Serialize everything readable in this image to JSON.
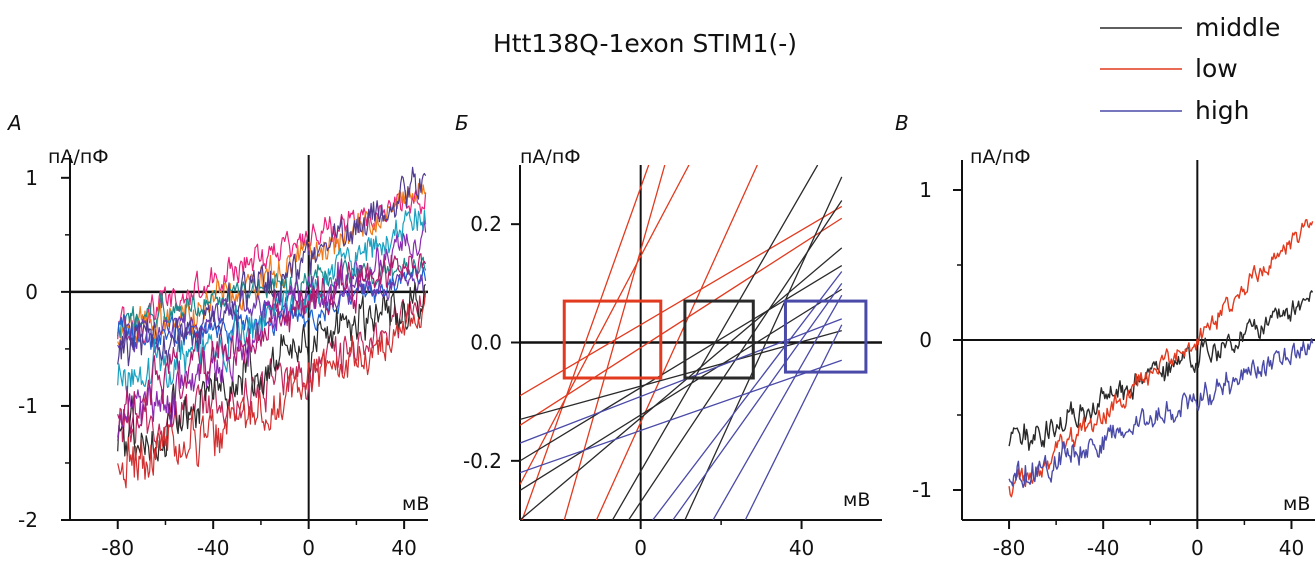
{
  "title": "Htt138Q-1exon STIM1(-)",
  "colors": {
    "middle": "#2a2a2a",
    "low": "#e23a1e",
    "high": "#4a4aa8",
    "panelA": [
      "#e8227a",
      "#f07a1a",
      "#1a8a8a",
      "#1c5fd0",
      "#6a3ab0",
      "#c0285a",
      "#2a2a2a",
      "#d23030",
      "#8a2ab0",
      "#1aa0c0",
      "#b01a6a",
      "#503a90"
    ]
  },
  "legend": {
    "items": [
      {
        "label": "middle",
        "series": "middle"
      },
      {
        "label": "low",
        "series": "low"
      },
      {
        "label": "high",
        "series": "high"
      }
    ],
    "position": "top-right"
  },
  "chart_data": [
    {
      "panel": "А",
      "type": "line",
      "ylabel": "пА/пФ",
      "xlabel": "мВ",
      "xlim": [
        -100,
        50
      ],
      "ylim": [
        -2,
        1.2
      ],
      "xticks": [
        -80,
        -40,
        0,
        40
      ],
      "yticks": [
        1,
        0,
        -1,
        -2
      ],
      "x_range": [
        -80,
        49
      ],
      "description_traces": "12 overlapping noisy I-V traces",
      "traces": [
        {
          "y_at_-80": -0.35,
          "y_at_48": 0.85,
          "noise": 0.12
        },
        {
          "y_at_-80": -0.4,
          "y_at_48": 0.95,
          "noise": 0.12
        },
        {
          "y_at_-80": -0.3,
          "y_at_48": 0.2,
          "noise": 0.1
        },
        {
          "y_at_-80": -0.35,
          "y_at_48": 0.15,
          "noise": 0.1
        },
        {
          "y_at_-80": -0.45,
          "y_at_48": 0.05,
          "noise": 0.1
        },
        {
          "y_at_-80": -1.2,
          "y_at_48": -0.1,
          "noise": 0.15
        },
        {
          "y_at_-80": -1.35,
          "y_at_48": -0.05,
          "noise": 0.18
        },
        {
          "y_at_-80": -1.5,
          "y_at_48": -0.2,
          "noise": 0.18
        },
        {
          "y_at_-80": -1.25,
          "y_at_48": 0.5,
          "noise": 0.15
        },
        {
          "y_at_-80": -0.8,
          "y_at_48": 0.7,
          "noise": 0.15
        },
        {
          "y_at_-80": -1.0,
          "y_at_48": 0.3,
          "noise": 0.15
        },
        {
          "y_at_-80": -0.6,
          "y_at_48": 1.0,
          "noise": 0.15
        }
      ]
    },
    {
      "panel": "Б",
      "type": "line",
      "ylabel": "пА/пФ",
      "xlabel": "мВ",
      "xlim": [
        -30,
        60
      ],
      "ylim": [
        -0.3,
        0.3
      ],
      "xticks": [
        0,
        40
      ],
      "yticks": [
        0.2,
        0.0,
        -0.2
      ],
      "ytick_labels": [
        "0.2",
        "0.0",
        "-0.2"
      ],
      "series": [
        {
          "name": "low",
          "lines": [
            {
              "x0": -30,
              "y0": -0.09,
              "x1": 50,
              "y1": 0.23
            },
            {
              "x0": -30,
              "y0": -0.14,
              "x1": 50,
              "y1": 0.21
            },
            {
              "x0": -30,
              "y0": -0.24,
              "x1": 12,
              "y1": 0.3
            },
            {
              "x0": -30,
              "y0": -0.31,
              "x1": 2,
              "y1": 0.3
            },
            {
              "x0": -19,
              "y0": -0.3,
              "x1": 6,
              "y1": 0.3
            },
            {
              "x0": -11,
              "y0": -0.3,
              "x1": 29,
              "y1": 0.3
            }
          ]
        },
        {
          "name": "middle",
          "lines": [
            {
              "x0": -30,
              "y0": -0.3,
              "x1": 50,
              "y1": 0.16
            },
            {
              "x0": -30,
              "y0": -0.2,
              "x1": 50,
              "y1": 0.13
            },
            {
              "x0": -30,
              "y0": -0.25,
              "x1": 50,
              "y1": 0.09
            },
            {
              "x0": -3,
              "y0": -0.3,
              "x1": 50,
              "y1": 0.24
            },
            {
              "x0": -7,
              "y0": -0.3,
              "x1": 44,
              "y1": 0.3
            },
            {
              "x0": 11,
              "y0": -0.3,
              "x1": 50,
              "y1": 0.28
            },
            {
              "x0": -30,
              "y0": -0.13,
              "x1": 50,
              "y1": 0.02
            }
          ]
        },
        {
          "name": "high",
          "lines": [
            {
              "x0": -30,
              "y0": -0.17,
              "x1": 50,
              "y1": 0.04
            },
            {
              "x0": -30,
              "y0": -0.22,
              "x1": 50,
              "y1": -0.03
            },
            {
              "x0": 3,
              "y0": -0.3,
              "x1": 50,
              "y1": 0.12
            },
            {
              "x0": 18,
              "y0": -0.3,
              "x1": 50,
              "y1": 0.08
            },
            {
              "x0": 8,
              "y0": -0.3,
              "x1": 50,
              "y1": 0.1
            },
            {
              "x0": 26,
              "y0": -0.3,
              "x1": 50,
              "y1": 0.03
            }
          ]
        }
      ],
      "boxes": [
        {
          "series": "low",
          "x": [
            -19,
            5
          ],
          "y": [
            -0.06,
            0.07
          ]
        },
        {
          "series": "middle",
          "x": [
            11,
            28
          ],
          "y": [
            -0.06,
            0.07
          ]
        },
        {
          "series": "high",
          "x": [
            36,
            56
          ],
          "y": [
            -0.05,
            0.07
          ]
        }
      ]
    },
    {
      "panel": "В",
      "type": "line",
      "ylabel": "пА/пФ",
      "xlabel": "мВ",
      "xlim": [
        -100,
        50
      ],
      "ylim": [
        -1.2,
        1.2
      ],
      "xticks": [
        -80,
        -40,
        0,
        40
      ],
      "yticks": [
        1,
        0,
        -1
      ],
      "x_range": [
        -80,
        49
      ],
      "series": [
        {
          "name": "middle",
          "y_at_-80": -0.7,
          "y_at_0": -0.12,
          "y_at_48": 0.27,
          "noise": 0.07
        },
        {
          "name": "low",
          "y_at_-80": -1.0,
          "y_at_0": 0.02,
          "y_at_48": 0.8,
          "noise": 0.06
        },
        {
          "name": "high",
          "y_at_-80": -0.95,
          "y_at_0": -0.38,
          "y_at_48": -0.02,
          "noise": 0.07
        }
      ]
    }
  ]
}
